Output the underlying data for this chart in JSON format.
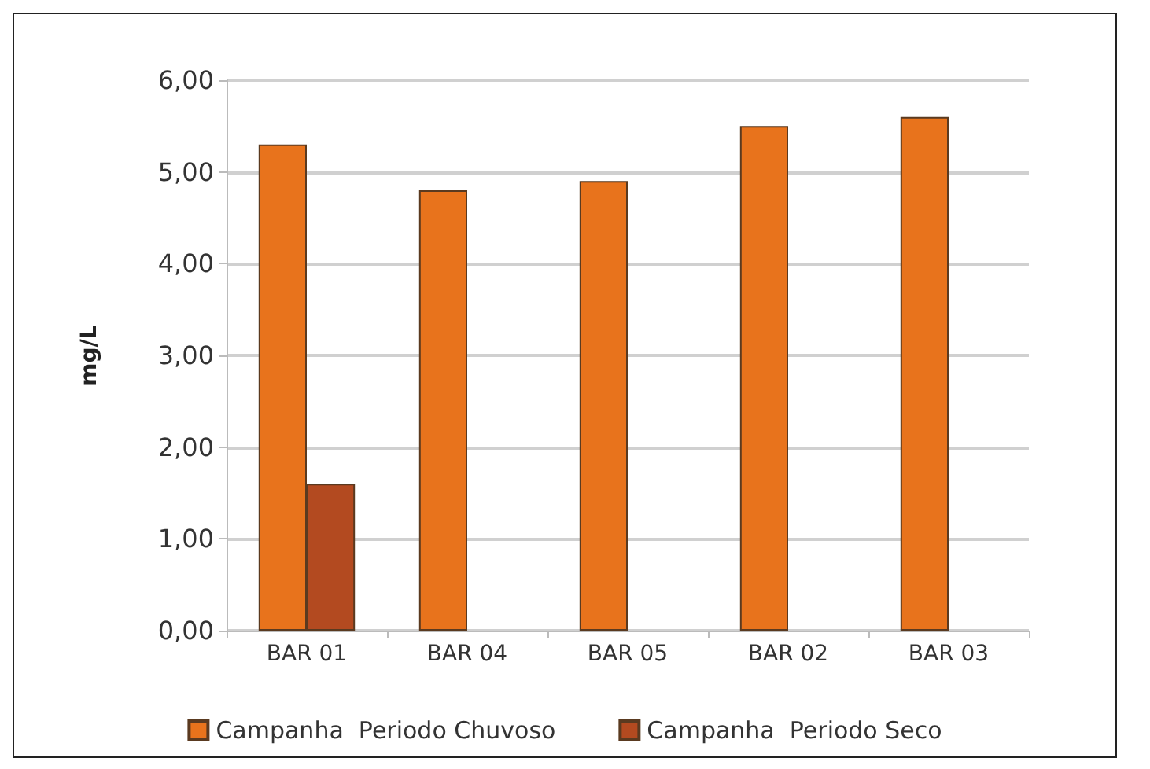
{
  "chart_data": {
    "type": "bar",
    "ylabel": "mg/L",
    "categories": [
      "BAR 01",
      "BAR 04",
      "BAR 05",
      "BAR 02",
      "BAR 03"
    ],
    "series": [
      {
        "name": "Campanha  Periodo Chuvoso",
        "color": "#e8731c",
        "values": [
          5.3,
          4.8,
          4.9,
          5.5,
          5.6
        ]
      },
      {
        "name": "Campanha  Periodo Seco",
        "color": "#b34a20",
        "values": [
          1.6,
          null,
          null,
          null,
          null
        ]
      }
    ],
    "ylim": [
      0,
      6
    ],
    "yticks": [
      {
        "value": 0,
        "label": "0,00"
      },
      {
        "value": 1,
        "label": "1,00"
      },
      {
        "value": 2,
        "label": "2,00"
      },
      {
        "value": 3,
        "label": "3,00"
      },
      {
        "value": 4,
        "label": "4,00"
      },
      {
        "value": 5,
        "label": "5,00"
      },
      {
        "value": 6,
        "label": "6,00"
      }
    ],
    "grid": "y",
    "legend": "bottom"
  }
}
